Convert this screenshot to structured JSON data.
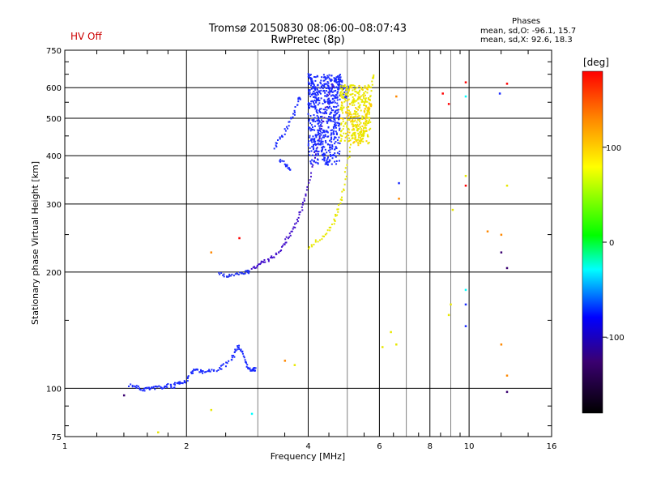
{
  "header": {
    "title_line1": "Tromsø 20150830 08:06:00–08:07:43",
    "title_line2": "RwPretec (8p)",
    "hv_status": "HV Off",
    "phases_title": "Phases",
    "phases_o": "mean, sd,O: -96.1, 15.7",
    "phases_x": "mean, sd,X:  92.6, 18.3"
  },
  "colors": {
    "hv_status": "#cc0000",
    "scale_stops": [
      "#000000",
      "#3a0070",
      "#0000ff",
      "#00ffff",
      "#00ff00",
      "#ffff00",
      "#ff8800",
      "#ff0000"
    ]
  },
  "chart_data": {
    "type": "scatter",
    "xlabel": "Frequency [MHz]",
    "ylabel": "Stationary phase Virtual Height [km]",
    "xscale": "log",
    "yscale": "log",
    "xlim": [
      1,
      16
    ],
    "ylim": [
      75,
      750
    ],
    "xticks": [
      1,
      2,
      4,
      6,
      8,
      10,
      16
    ],
    "xminor": [
      3,
      5,
      7,
      9
    ],
    "yticks": [
      75,
      100,
      200,
      300,
      400,
      500,
      600,
      750
    ],
    "grid": true,
    "colorbar": {
      "label": "[deg]",
      "range": [
        -180,
        180
      ],
      "ticks": [
        100,
        0,
        -100
      ]
    },
    "traces": [
      {
        "name": "O",
        "phase": -105,
        "color": "#1a2bff",
        "points": [
          [
            1.45,
            102
          ],
          [
            1.5,
            101
          ],
          [
            1.55,
            99
          ],
          [
            1.6,
            100
          ],
          [
            1.65,
            100
          ],
          [
            1.7,
            101
          ],
          [
            1.75,
            100
          ],
          [
            1.8,
            102
          ],
          [
            1.85,
            101
          ],
          [
            1.9,
            103
          ],
          [
            1.95,
            104
          ],
          [
            2.0,
            104
          ],
          [
            2.05,
            110
          ],
          [
            2.1,
            112
          ],
          [
            2.15,
            111
          ],
          [
            2.2,
            110
          ],
          [
            2.3,
            111
          ],
          [
            2.4,
            112
          ],
          [
            2.5,
            115
          ],
          [
            2.6,
            120
          ],
          [
            2.65,
            125
          ],
          [
            2.7,
            128
          ],
          [
            2.75,
            124
          ],
          [
            2.8,
            117
          ],
          [
            2.85,
            112
          ],
          [
            2.9,
            111
          ],
          [
            2.95,
            112
          ]
        ]
      },
      {
        "name": "O",
        "phase": -110,
        "color": "#2233ee",
        "points": [
          [
            2.4,
            198
          ],
          [
            2.5,
            195
          ],
          [
            2.6,
            196
          ],
          [
            2.7,
            198
          ],
          [
            2.8,
            200
          ],
          [
            2.85,
            200
          ]
        ]
      },
      {
        "name": "O",
        "phase": -120,
        "color": "#4411cc",
        "points": [
          [
            2.9,
            205
          ],
          [
            3.0,
            208
          ],
          [
            3.1,
            212
          ],
          [
            3.2,
            215
          ],
          [
            3.3,
            220
          ],
          [
            3.4,
            228
          ],
          [
            3.5,
            238
          ],
          [
            3.6,
            250
          ],
          [
            3.7,
            262
          ],
          [
            3.8,
            280
          ],
          [
            3.9,
            300
          ],
          [
            4.0,
            330
          ],
          [
            4.1,
            380
          ],
          [
            4.2,
            420
          ],
          [
            4.3,
            470
          ],
          [
            4.4,
            520
          ],
          [
            4.5,
            570
          ],
          [
            4.6,
            610
          ]
        ]
      },
      {
        "name": "O",
        "phase": -100,
        "color": "#1a2bff",
        "points": [
          [
            3.3,
            420
          ],
          [
            3.4,
            440
          ],
          [
            3.5,
            460
          ],
          [
            3.6,
            490
          ],
          [
            3.7,
            520
          ],
          [
            3.8,
            560
          ]
        ]
      },
      {
        "name": "O",
        "phase": -100,
        "color": "#1a2bff",
        "points": [
          [
            3.4,
            390
          ],
          [
            3.5,
            380
          ],
          [
            3.6,
            370
          ]
        ]
      },
      {
        "name": "O",
        "phase": -100,
        "color": "#1a2bff",
        "points": [
          [
            4.0,
            650
          ],
          [
            4.05,
            640
          ],
          [
            4.1,
            600
          ],
          [
            4.15,
            560
          ],
          [
            4.2,
            520
          ],
          [
            4.25,
            480
          ],
          [
            4.3,
            440
          ],
          [
            4.35,
            410
          ],
          [
            4.4,
            390
          ],
          [
            4.45,
            380
          ],
          [
            4.5,
            390
          ],
          [
            4.55,
            420
          ],
          [
            4.6,
            460
          ],
          [
            4.65,
            500
          ],
          [
            4.7,
            560
          ],
          [
            4.75,
            600
          ],
          [
            4.8,
            640
          ],
          [
            4.85,
            610
          ],
          [
            4.9,
            580
          ],
          [
            4.95,
            560
          ],
          [
            5.0,
            600
          ]
        ]
      },
      {
        "name": "X",
        "phase": 110,
        "color": "#e8e800",
        "points": [
          [
            4.0,
            230
          ],
          [
            4.2,
            240
          ],
          [
            4.4,
            250
          ],
          [
            4.6,
            265
          ],
          [
            4.7,
            280
          ],
          [
            4.8,
            300
          ],
          [
            4.9,
            330
          ],
          [
            5.0,
            380
          ],
          [
            5.1,
            440
          ],
          [
            5.2,
            480
          ],
          [
            5.3,
            470
          ],
          [
            5.4,
            450
          ],
          [
            5.5,
            460
          ],
          [
            5.6,
            500
          ],
          [
            5.7,
            560
          ],
          [
            5.8,
            640
          ]
        ]
      },
      {
        "name": "X",
        "phase": 120,
        "color": "#ffcc00",
        "points": [
          [
            5.0,
            520
          ],
          [
            5.1,
            500
          ],
          [
            5.2,
            460
          ],
          [
            5.3,
            430
          ],
          [
            5.4,
            440
          ],
          [
            5.5,
            480
          ],
          [
            5.6,
            520
          ],
          [
            5.7,
            540
          ]
        ]
      }
    ],
    "scatter": [
      {
        "x": 6.6,
        "y": 570,
        "color": "#ff8800"
      },
      {
        "x": 6.4,
        "y": 140,
        "color": "#e8e800"
      },
      {
        "x": 6.1,
        "y": 128,
        "color": "#e8e800"
      },
      {
        "x": 6.6,
        "y": 130,
        "color": "#e8e800"
      },
      {
        "x": 6.7,
        "y": 340,
        "color": "#1a2bff"
      },
      {
        "x": 6.7,
        "y": 310,
        "color": "#ff8800"
      },
      {
        "x": 8.6,
        "y": 580,
        "color": "#ff0000"
      },
      {
        "x": 8.9,
        "y": 545,
        "color": "#ff0000"
      },
      {
        "x": 9.1,
        "y": 290,
        "color": "#e8e800"
      },
      {
        "x": 9.0,
        "y": 165,
        "color": "#e8e800"
      },
      {
        "x": 8.9,
        "y": 155,
        "color": "#e8e800"
      },
      {
        "x": 9.8,
        "y": 620,
        "color": "#ff0000"
      },
      {
        "x": 9.8,
        "y": 570,
        "color": "#00ffff"
      },
      {
        "x": 9.8,
        "y": 355,
        "color": "#e8e800"
      },
      {
        "x": 9.8,
        "y": 335,
        "color": "#ff0000"
      },
      {
        "x": 9.8,
        "y": 180,
        "color": "#00ffff"
      },
      {
        "x": 9.8,
        "y": 165,
        "color": "#1a2bff"
      },
      {
        "x": 9.8,
        "y": 145,
        "color": "#1a2bff"
      },
      {
        "x": 11.1,
        "y": 255,
        "color": "#ff8800"
      },
      {
        "x": 12.0,
        "y": 250,
        "color": "#ff8800"
      },
      {
        "x": 12.0,
        "y": 225,
        "color": "#3a0070"
      },
      {
        "x": 12.0,
        "y": 130,
        "color": "#ff8800"
      },
      {
        "x": 12.4,
        "y": 615,
        "color": "#ff0000"
      },
      {
        "x": 12.4,
        "y": 335,
        "color": "#e8e800"
      },
      {
        "x": 12.4,
        "y": 205,
        "color": "#3a0070"
      },
      {
        "x": 12.4,
        "y": 108,
        "color": "#ff8800"
      },
      {
        "x": 12.4,
        "y": 98,
        "color": "#3a0070"
      },
      {
        "x": 11.9,
        "y": 580,
        "color": "#1a2bff"
      },
      {
        "x": 1.4,
        "y": 96,
        "color": "#3a0070"
      },
      {
        "x": 1.7,
        "y": 77,
        "color": "#e8e800"
      },
      {
        "x": 2.3,
        "y": 88,
        "color": "#e8e800"
      },
      {
        "x": 2.3,
        "y": 225,
        "color": "#ff8800"
      },
      {
        "x": 2.7,
        "y": 245,
        "color": "#ff0000"
      },
      {
        "x": 2.9,
        "y": 86,
        "color": "#00ffff"
      },
      {
        "x": 3.5,
        "y": 118,
        "color": "#ff8800"
      },
      {
        "x": 3.7,
        "y": 115,
        "color": "#e8e800"
      }
    ]
  }
}
